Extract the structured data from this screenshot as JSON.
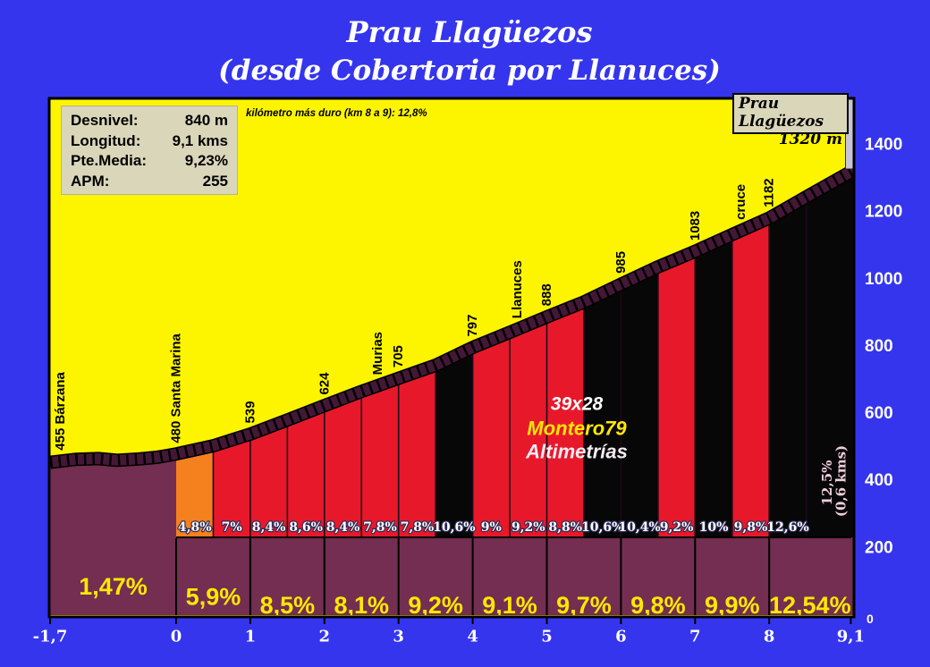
{
  "title": {
    "line1": "Prau Llagüezos",
    "line2": "(desde Cobertoria por Llanuces)"
  },
  "info_box": {
    "rows": [
      {
        "label": "Desnivel:",
        "value": "840 m"
      },
      {
        "label": "Longitud:",
        "value": "9,1 kms"
      },
      {
        "label": "Pte.Media:",
        "value": "9,23%"
      },
      {
        "label": "APM:",
        "value": "255"
      }
    ]
  },
  "hardest_km_note": "kilómetro más duro (km 8 a 9):  12,8%",
  "summit_box": {
    "name": "Prau Llagüezos",
    "elevation": "1320 m"
  },
  "watermark": {
    "line1": "39x28",
    "line2": "Montero79",
    "line3": "Altimetrías"
  },
  "colors": {
    "background": "#3535EE",
    "sky": "#FDF500",
    "ground": "#732E51",
    "road": "#451737",
    "red": "#E8182B",
    "orange": "#F5801E",
    "black": "#070707",
    "separator": "#1D0818",
    "box_bg": "#DAD6BA",
    "summit_strip": "#C8C4D8",
    "grade_text": "#FFE800",
    "axis_text": "#FFFFFF",
    "segment_label_fill": "#FFFFFF",
    "segment_label_stroke": "#2B2B55",
    "vertical_label_fill": "#EFCDDC",
    "watermark_white": "#FFFFFF",
    "watermark_yellow": "#FFE800",
    "watermark_pink": "#F6ECF4"
  },
  "chart_data": {
    "type": "area",
    "title": "Prau Llagüezos (desde Cobertoria por Llanuces)",
    "x_unit": "km",
    "y_unit": "m",
    "x_range": [
      -1.7,
      9.1
    ],
    "y_range": [
      0,
      1400
    ],
    "x_axis": {
      "ticks": [
        {
          "km": -1.7,
          "label": "-1,7"
        },
        {
          "km": 0,
          "label": "0"
        },
        {
          "km": 1,
          "label": "1"
        },
        {
          "km": 2,
          "label": "2"
        },
        {
          "km": 3,
          "label": "3"
        },
        {
          "km": 4,
          "label": "4"
        },
        {
          "km": 5,
          "label": "5"
        },
        {
          "km": 6,
          "label": "6"
        },
        {
          "km": 7,
          "label": "7"
        },
        {
          "km": 8,
          "label": "8"
        },
        {
          "km": 9.1,
          "label": "9,1"
        }
      ]
    },
    "y_axis": {
      "ticks": [
        {
          "m": 0,
          "label": "0"
        },
        {
          "m": 200,
          "label": "200"
        },
        {
          "m": 400,
          "label": "400"
        },
        {
          "m": 600,
          "label": "600"
        },
        {
          "m": 800,
          "label": "800"
        },
        {
          "m": 1000,
          "label": "1000"
        },
        {
          "m": 1200,
          "label": "1200"
        },
        {
          "m": 1400,
          "label": "1400"
        }
      ]
    },
    "profile": [
      {
        "km": -1.7,
        "m": 455
      },
      {
        "km": -1.35,
        "m": 464
      },
      {
        "km": -1.05,
        "m": 466
      },
      {
        "km": -0.8,
        "m": 461
      },
      {
        "km": -0.5,
        "m": 465
      },
      {
        "km": -0.25,
        "m": 470
      },
      {
        "km": 0,
        "m": 480
      },
      {
        "km": 0.5,
        "m": 504
      },
      {
        "km": 1,
        "m": 539
      },
      {
        "km": 1.5,
        "m": 581
      },
      {
        "km": 2,
        "m": 624
      },
      {
        "km": 2.5,
        "m": 666
      },
      {
        "km": 3,
        "m": 705
      },
      {
        "km": 3.5,
        "m": 744
      },
      {
        "km": 4,
        "m": 797
      },
      {
        "km": 4.5,
        "m": 842
      },
      {
        "km": 5,
        "m": 888
      },
      {
        "km": 5.5,
        "m": 932
      },
      {
        "km": 6,
        "m": 985
      },
      {
        "km": 6.5,
        "m": 1037
      },
      {
        "km": 7,
        "m": 1083
      },
      {
        "km": 7.5,
        "m": 1133
      },
      {
        "km": 8,
        "m": 1182
      },
      {
        "km": 8.5,
        "m": 1245
      },
      {
        "km": 9.1,
        "m": 1320
      },
      {
        "km": 9.2,
        "m": 1333
      }
    ],
    "segments": [
      {
        "from": 0,
        "to": 0.5,
        "label": "4,8%",
        "color": "orange"
      },
      {
        "from": 0.5,
        "to": 1,
        "label": "7%",
        "color": "red"
      },
      {
        "from": 1,
        "to": 1.5,
        "label": "8,4%",
        "color": "red"
      },
      {
        "from": 1.5,
        "to": 2,
        "label": "8,6%",
        "color": "red"
      },
      {
        "from": 2,
        "to": 2.5,
        "label": "8,4%",
        "color": "red"
      },
      {
        "from": 2.5,
        "to": 3,
        "label": "7,8%",
        "color": "red"
      },
      {
        "from": 3,
        "to": 3.5,
        "label": "7,8%",
        "color": "red"
      },
      {
        "from": 3.5,
        "to": 4,
        "label": "10,6%",
        "color": "black"
      },
      {
        "from": 4,
        "to": 4.5,
        "label": "9%",
        "color": "red"
      },
      {
        "from": 4.5,
        "to": 5,
        "label": "9,2%",
        "color": "red"
      },
      {
        "from": 5,
        "to": 5.5,
        "label": "8,8%",
        "color": "red"
      },
      {
        "from": 5.5,
        "to": 6,
        "label": "10,6%",
        "color": "black"
      },
      {
        "from": 6,
        "to": 6.5,
        "label": "10,4%",
        "color": "black"
      },
      {
        "from": 6.5,
        "to": 7,
        "label": "9,2%",
        "color": "red"
      },
      {
        "from": 7,
        "to": 7.5,
        "label": "10%",
        "color": "black"
      },
      {
        "from": 7.5,
        "to": 8,
        "label": "9,8%",
        "color": "red"
      },
      {
        "from": 8,
        "to": 8.5,
        "label": "12,6%",
        "color": "black"
      },
      {
        "from": 8.5,
        "to": 9.2,
        "label": "",
        "color": "black"
      }
    ],
    "final_segment_label": {
      "line1": "12,5%",
      "line2": "(0,6 kms)"
    },
    "km_grades": [
      {
        "from": -1.7,
        "to": 0,
        "label": "1,47%"
      },
      {
        "from": 0,
        "to": 1,
        "label": "5,9%"
      },
      {
        "from": 1,
        "to": 2,
        "label": "8,5%"
      },
      {
        "from": 2,
        "to": 3,
        "label": "8,1%"
      },
      {
        "from": 3,
        "to": 4,
        "label": "9,2%"
      },
      {
        "from": 4,
        "to": 5,
        "label": "9,1%"
      },
      {
        "from": 5,
        "to": 6,
        "label": "9,7%"
      },
      {
        "from": 6,
        "to": 7,
        "label": "9,8%"
      },
      {
        "from": 7,
        "to": 8,
        "label": "9,9%"
      },
      {
        "from": 8,
        "to": 9.1,
        "label": "12,54%"
      }
    ],
    "landmarks": [
      {
        "km": -1.56,
        "text": "455  Bárzana"
      },
      {
        "km": 0,
        "text": "480 Santa Marina"
      },
      {
        "km": 1,
        "text": "539"
      },
      {
        "km": 2,
        "text": "624"
      },
      {
        "km": 2.72,
        "text": "Murias"
      },
      {
        "km": 3,
        "text": "705"
      },
      {
        "km": 4,
        "text": "797"
      },
      {
        "km": 4.6,
        "text": "Llanuces"
      },
      {
        "km": 5,
        "text": "888"
      },
      {
        "km": 6,
        "text": "985"
      },
      {
        "km": 7,
        "text": "1083"
      },
      {
        "km": 7.62,
        "text": "cruce"
      },
      {
        "km": 8,
        "text": "1182"
      }
    ]
  }
}
